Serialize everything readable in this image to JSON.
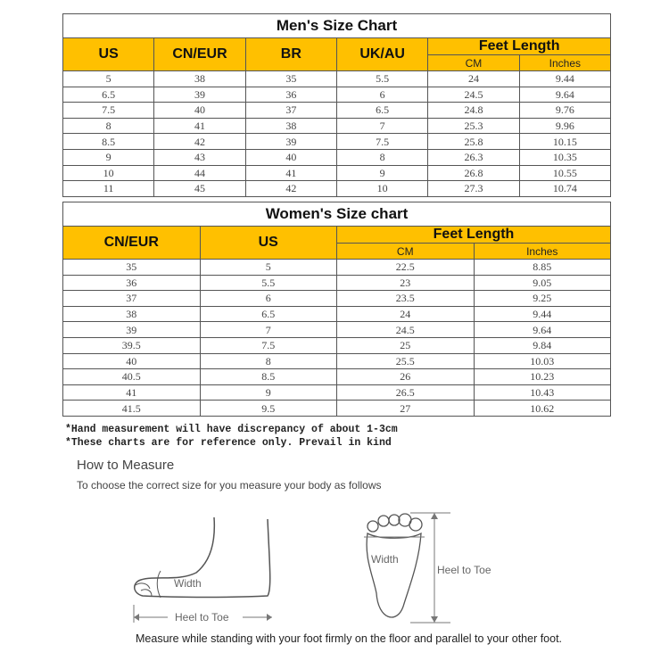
{
  "men": {
    "title": "Men's Size Chart",
    "headers": [
      "US",
      "CN/EUR",
      "BR",
      "UK/AU"
    ],
    "feet_length": "Feet Length",
    "cm": "CM",
    "inches": "Inches",
    "rows": [
      [
        "5",
        "38",
        "35",
        "5.5",
        "24",
        "9.44"
      ],
      [
        "6.5",
        "39",
        "36",
        "6",
        "24.5",
        "9.64"
      ],
      [
        "7.5",
        "40",
        "37",
        "6.5",
        "24.8",
        "9.76"
      ],
      [
        "8",
        "41",
        "38",
        "7",
        "25.3",
        "9.96"
      ],
      [
        "8.5",
        "42",
        "39",
        "7.5",
        "25.8",
        "10.15"
      ],
      [
        "9",
        "43",
        "40",
        "8",
        "26.3",
        "10.35"
      ],
      [
        "10",
        "44",
        "41",
        "9",
        "26.8",
        "10.55"
      ],
      [
        "11",
        "45",
        "42",
        "10",
        "27.3",
        "10.74"
      ]
    ]
  },
  "women": {
    "title": "Women's Size chart",
    "headers": [
      "CN/EUR",
      "US"
    ],
    "feet_length": "Feet Length",
    "cm": "CM",
    "inches": "Inches",
    "rows": [
      [
        "35",
        "5",
        "22.5",
        "8.85"
      ],
      [
        "36",
        "5.5",
        "23",
        "9.05"
      ],
      [
        "37",
        "6",
        "23.5",
        "9.25"
      ],
      [
        "38",
        "6.5",
        "24",
        "9.44"
      ],
      [
        "39",
        "7",
        "24.5",
        "9.64"
      ],
      [
        "39.5",
        "7.5",
        "25",
        "9.84"
      ],
      [
        "40",
        "8",
        "25.5",
        "10.03"
      ],
      [
        "40.5",
        "8.5",
        "26",
        "10.23"
      ],
      [
        "41",
        "9",
        "26.5",
        "10.43"
      ],
      [
        "41.5",
        "9.5",
        "27",
        "10.62"
      ]
    ]
  },
  "notes": [
    "*Hand measurement will have discrepancy of about 1-3cm",
    "*These charts are for reference only. Prevail in kind"
  ],
  "measure": {
    "title": "How to Measure",
    "subtitle": "To choose the correct size for you measure your body as follows",
    "width_label": "Width",
    "heel_to_toe_label": "Heel to Toe",
    "caption": "Measure while standing with your foot firmly on the floor and parallel to your other foot."
  },
  "colors": {
    "header_bg": "#ffc000"
  }
}
